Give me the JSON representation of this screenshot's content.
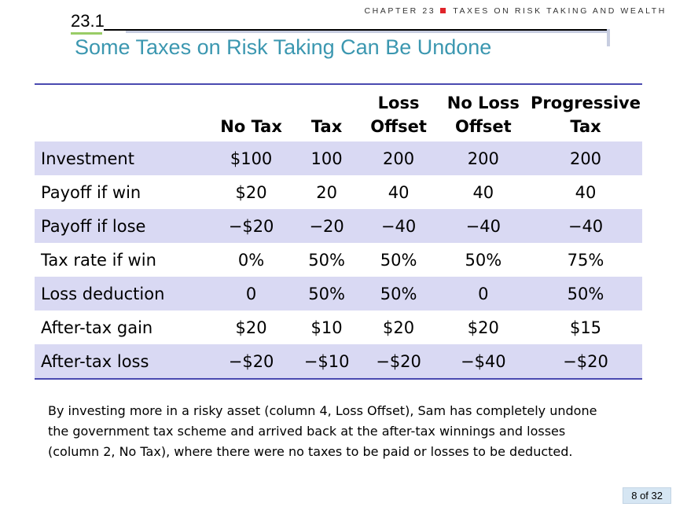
{
  "header": {
    "chapter_label": "CHAPTER 23",
    "chapter_title": "TAXES ON RISK TAKING AND WEALTH",
    "accent_color": "#e0242a"
  },
  "section": {
    "number": "23.1"
  },
  "title": "Some Taxes on Risk Taking Can Be Undone",
  "table": {
    "columns": [
      {
        "line1": "",
        "line2": ""
      },
      {
        "line1": "No Tax",
        "line2": ""
      },
      {
        "line1": "Tax",
        "line2": ""
      },
      {
        "line1": "Loss",
        "line2": "Offset"
      },
      {
        "line1": "No Loss",
        "line2": "Offset"
      },
      {
        "line1": "Progressive",
        "line2": "Tax"
      }
    ],
    "rows": [
      [
        "Investment",
        "$100",
        "100",
        "200",
        "200",
        "200"
      ],
      [
        "Payoff if win",
        "$20",
        "20",
        "40",
        "40",
        "40"
      ],
      [
        "Payoff if lose",
        "−$20",
        "−20",
        "−40",
        "−40",
        "−40"
      ],
      [
        "Tax rate if win",
        "0%",
        "50%",
        "50%",
        "50%",
        "75%"
      ],
      [
        "Loss deduction",
        "0",
        "50%",
        "50%",
        "0",
        "50%"
      ],
      [
        "After-tax gain",
        "$20",
        "$10",
        "$20",
        "$20",
        "$15"
      ],
      [
        "After-tax loss",
        "−$20",
        "−$10",
        "−$20",
        "−$40",
        "−$20"
      ]
    ]
  },
  "description": "By investing more in a risky asset (column 4, Loss Offset), Sam has completely undone the government tax scheme and arrived back at the after-tax winnings and losses (column 2, No Tax), where there were no taxes to be paid or losses to be deducted.",
  "page_indicator": "8 of 32"
}
